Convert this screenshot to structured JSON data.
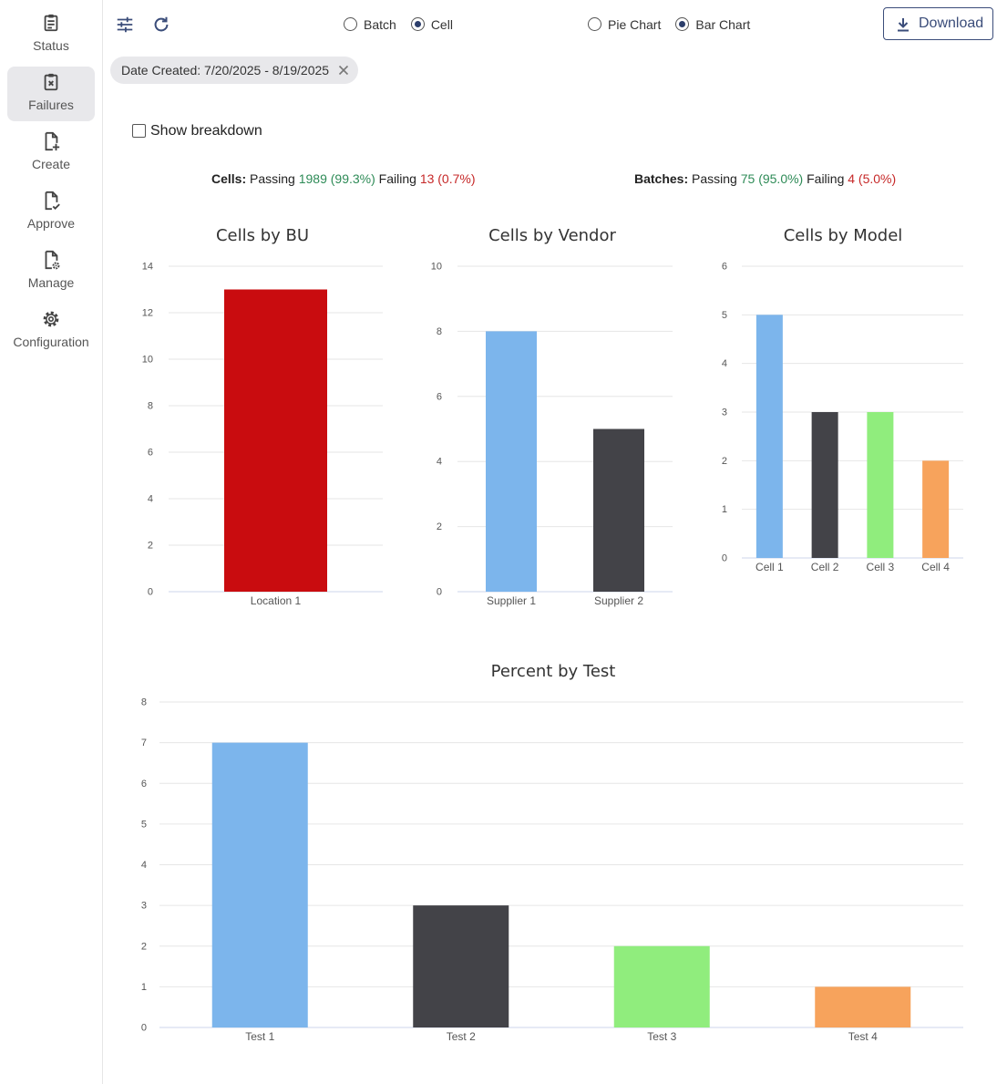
{
  "sidebar": {
    "items": [
      {
        "label": "Status",
        "icon": "clipboard-list-icon",
        "active": false
      },
      {
        "label": "Failures",
        "icon": "clipboard-x-icon",
        "active": true
      },
      {
        "label": "Create",
        "icon": "file-plus-icon",
        "active": false
      },
      {
        "label": "Approve",
        "icon": "file-check-icon",
        "active": false
      },
      {
        "label": "Manage",
        "icon": "file-gear-icon",
        "active": false
      },
      {
        "label": "Configuration",
        "icon": "gear-icon",
        "active": false
      }
    ]
  },
  "toolbar": {
    "mode": {
      "options": [
        "Batch",
        "Cell"
      ],
      "selected": "Cell"
    },
    "chart_type": {
      "options": [
        "Pie Chart",
        "Bar Chart"
      ],
      "selected": "Bar Chart"
    },
    "download_label": "Download",
    "filter_icon": "tune-icon",
    "refresh_icon": "refresh-icon"
  },
  "filter_chip": {
    "label": "Date Created: 7/20/2025 - 8/19/2025"
  },
  "breakdown": {
    "label": "Show breakdown",
    "checked": false
  },
  "summary": {
    "cells": {
      "label": "Cells:",
      "passing_label": "Passing",
      "passing": "1989 (99.3%)",
      "failing_label": "Failing",
      "failing": "13 (0.7%)"
    },
    "batches": {
      "label": "Batches:",
      "passing_label": "Passing",
      "passing": "75 (95.0%)",
      "failing_label": "Failing",
      "failing": "4 (5.0%)"
    }
  },
  "colors": {
    "blue": "#7cb5ec",
    "dark": "#434348",
    "green": "#90ed7d",
    "orange": "#f7a35c",
    "red": "#c90c0f",
    "pass": "#2e8b57",
    "fail": "#c62828"
  },
  "chart_data": [
    {
      "type": "bar",
      "title": "Cells by BU",
      "categories": [
        "Location 1"
      ],
      "values": [
        13
      ],
      "colors": [
        "#c90c0f"
      ],
      "ylim": [
        0,
        14
      ],
      "yticks": [
        0,
        2,
        4,
        6,
        8,
        10,
        12,
        14
      ],
      "grid": true
    },
    {
      "type": "bar",
      "title": "Cells by Vendor",
      "categories": [
        "Supplier 1",
        "Supplier 2"
      ],
      "values": [
        8,
        5
      ],
      "colors": [
        "#7cb5ec",
        "#434348"
      ],
      "ylim": [
        0,
        10
      ],
      "yticks": [
        0,
        2,
        4,
        6,
        8,
        10
      ],
      "grid": true
    },
    {
      "type": "bar",
      "title": "Cells by Model",
      "categories": [
        "Cell 1",
        "Cell 2",
        "Cell 3",
        "Cell 4"
      ],
      "values": [
        5,
        3,
        3,
        2
      ],
      "colors": [
        "#7cb5ec",
        "#434348",
        "#90ed7d",
        "#f7a35c"
      ],
      "ylim": [
        0,
        6
      ],
      "yticks": [
        0,
        1,
        2,
        3,
        4,
        5,
        6
      ],
      "grid": true
    },
    {
      "type": "bar",
      "title": "Percent by Test",
      "categories": [
        "Test 1",
        "Test 2",
        "Test 3",
        "Test 4"
      ],
      "values": [
        7,
        3,
        2,
        1
      ],
      "colors": [
        "#7cb5ec",
        "#434348",
        "#90ed7d",
        "#f7a35c"
      ],
      "ylim": [
        0,
        8
      ],
      "yticks": [
        0,
        1,
        2,
        3,
        4,
        5,
        6,
        7,
        8
      ],
      "grid": true
    }
  ]
}
